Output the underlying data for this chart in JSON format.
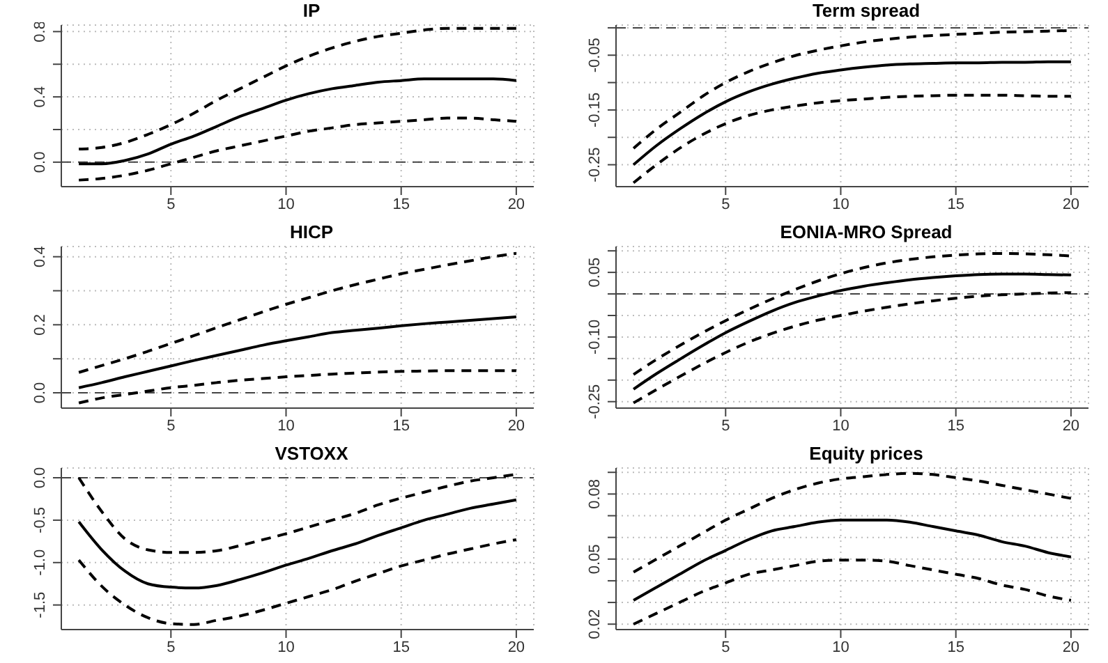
{
  "chart_data": [
    {
      "type": "line",
      "title": "IP",
      "x": [
        1,
        2,
        3,
        4,
        5,
        6,
        7,
        8,
        9,
        10,
        11,
        12,
        13,
        14,
        15,
        16,
        17,
        18,
        19,
        20
      ],
      "xlim": [
        0.24,
        20.76
      ],
      "xticks": [
        5,
        10,
        15,
        20
      ],
      "ylim": [
        -0.15,
        0.84
      ],
      "yticks": [
        {
          "value": 0,
          "label": "0.0"
        },
        {
          "value": 0.2,
          "label": null
        },
        {
          "value": 0.4,
          "label": "0.4"
        },
        {
          "value": 0.6,
          "label": null
        },
        {
          "value": 0.8,
          "label": "0.8"
        }
      ],
      "grid": true,
      "ref_lines": [
        {
          "axis": "y",
          "value": 0,
          "line_style": "dashed"
        }
      ],
      "series": [
        {
          "color": "#000000",
          "line_style": "solid",
          "values": [
            -0.01,
            -0.01,
            0.01,
            0.05,
            0.11,
            0.16,
            0.22,
            0.28,
            0.33,
            0.38,
            0.42,
            0.45,
            0.47,
            0.49,
            0.5,
            0.51,
            0.51,
            0.51,
            0.51,
            0.5
          ]
        },
        {
          "color": "#000000",
          "line_style": "dashed",
          "values": [
            0.08,
            0.09,
            0.12,
            0.17,
            0.23,
            0.3,
            0.38,
            0.45,
            0.52,
            0.59,
            0.65,
            0.7,
            0.74,
            0.77,
            0.79,
            0.81,
            0.82,
            0.82,
            0.82,
            0.82
          ]
        },
        {
          "color": "#000000",
          "line_style": "dashed",
          "values": [
            -0.11,
            -0.1,
            -0.08,
            -0.05,
            -0.01,
            0.03,
            0.07,
            0.1,
            0.13,
            0.16,
            0.19,
            0.21,
            0.23,
            0.24,
            0.25,
            0.26,
            0.27,
            0.27,
            0.26,
            0.25
          ]
        }
      ]
    },
    {
      "type": "line",
      "title": "Term spread",
      "x": [
        1,
        2,
        3,
        4,
        5,
        6,
        7,
        8,
        9,
        10,
        11,
        12,
        13,
        14,
        15,
        16,
        17,
        18,
        19,
        20
      ],
      "xlim": [
        0.24,
        20.76
      ],
      "xticks": [
        5,
        10,
        15,
        20
      ],
      "ylim": [
        -0.29,
        0.005
      ],
      "yticks": [
        {
          "value": -0.25,
          "label": "-0.25"
        },
        {
          "value": -0.2,
          "label": null
        },
        {
          "value": -0.15,
          "label": "-0.15"
        },
        {
          "value": -0.1,
          "label": null
        },
        {
          "value": -0.05,
          "label": "-0.05"
        },
        {
          "value": 0,
          "label": null
        }
      ],
      "grid": true,
      "ref_lines": [
        {
          "axis": "y",
          "value": 0,
          "line_style": "dashed"
        }
      ],
      "series": [
        {
          "color": "#000000",
          "line_style": "solid",
          "values": [
            -0.25,
            -0.215,
            -0.185,
            -0.158,
            -0.135,
            -0.117,
            -0.103,
            -0.092,
            -0.083,
            -0.077,
            -0.072,
            -0.068,
            -0.066,
            -0.065,
            -0.064,
            -0.064,
            -0.063,
            -0.063,
            -0.062,
            -0.062
          ]
        },
        {
          "color": "#000000",
          "line_style": "dashed",
          "values": [
            -0.22,
            -0.185,
            -0.155,
            -0.125,
            -0.1,
            -0.08,
            -0.064,
            -0.051,
            -0.041,
            -0.033,
            -0.026,
            -0.021,
            -0.017,
            -0.014,
            -0.012,
            -0.01,
            -0.008,
            -0.007,
            -0.006,
            -0.005
          ]
        },
        {
          "color": "#000000",
          "line_style": "dashed",
          "values": [
            -0.283,
            -0.25,
            -0.22,
            -0.195,
            -0.175,
            -0.16,
            -0.15,
            -0.143,
            -0.137,
            -0.133,
            -0.13,
            -0.127,
            -0.125,
            -0.124,
            -0.123,
            -0.123,
            -0.123,
            -0.124,
            -0.125,
            -0.125
          ]
        }
      ]
    },
    {
      "type": "line",
      "title": "HICP",
      "x": [
        1,
        2,
        3,
        4,
        5,
        6,
        7,
        8,
        9,
        10,
        11,
        12,
        13,
        14,
        15,
        16,
        17,
        18,
        19,
        20
      ],
      "xlim": [
        0.24,
        20.76
      ],
      "xticks": [
        5,
        10,
        15,
        20
      ],
      "ylim": [
        -0.045,
        0.43
      ],
      "yticks": [
        {
          "value": 0,
          "label": "0.0"
        },
        {
          "value": 0.1,
          "label": null
        },
        {
          "value": 0.2,
          "label": "0.2"
        },
        {
          "value": 0.3,
          "label": null
        },
        {
          "value": 0.4,
          "label": "0.4"
        }
      ],
      "grid": true,
      "ref_lines": [
        {
          "axis": "y",
          "value": 0,
          "line_style": "dashed"
        }
      ],
      "series": [
        {
          "color": "#000000",
          "line_style": "solid",
          "values": [
            0.015,
            0.03,
            0.047,
            0.063,
            0.079,
            0.095,
            0.11,
            0.125,
            0.14,
            0.153,
            0.165,
            0.177,
            0.184,
            0.19,
            0.197,
            0.203,
            0.208,
            0.213,
            0.218,
            0.223
          ]
        },
        {
          "color": "#000000",
          "line_style": "dashed",
          "values": [
            0.06,
            0.08,
            0.1,
            0.122,
            0.145,
            0.168,
            0.192,
            0.215,
            0.238,
            0.26,
            0.28,
            0.3,
            0.318,
            0.334,
            0.35,
            0.363,
            0.376,
            0.388,
            0.4,
            0.41
          ]
        },
        {
          "color": "#000000",
          "line_style": "dashed",
          "values": [
            -0.03,
            -0.015,
            -0.005,
            0.005,
            0.015,
            0.022,
            0.03,
            0.037,
            0.042,
            0.047,
            0.051,
            0.055,
            0.058,
            0.061,
            0.063,
            0.064,
            0.065,
            0.065,
            0.065,
            0.065
          ]
        }
      ]
    },
    {
      "type": "line",
      "title": "EONIA-MRO Spread",
      "x": [
        1,
        2,
        3,
        4,
        5,
        6,
        7,
        8,
        9,
        10,
        11,
        12,
        13,
        14,
        15,
        16,
        17,
        18,
        19,
        20
      ],
      "xlim": [
        0.24,
        20.76
      ],
      "xticks": [
        5,
        10,
        15,
        20
      ],
      "ylim": [
        -0.265,
        0.11
      ],
      "yticks": [
        {
          "value": -0.25,
          "label": "-0.25"
        },
        {
          "value": -0.2,
          "label": null
        },
        {
          "value": -0.15,
          "label": null
        },
        {
          "value": -0.1,
          "label": "-0.10"
        },
        {
          "value": -0.05,
          "label": null
        },
        {
          "value": 0,
          "label": null
        },
        {
          "value": 0.05,
          "label": "0.05"
        },
        {
          "value": 0.1,
          "label": null
        }
      ],
      "grid": true,
      "ref_lines": [
        {
          "axis": "y",
          "value": 0,
          "line_style": "dashed"
        }
      ],
      "series": [
        {
          "color": "#000000",
          "line_style": "solid",
          "values": [
            -0.221,
            -0.185,
            -0.152,
            -0.12,
            -0.09,
            -0.064,
            -0.04,
            -0.02,
            -0.005,
            0.008,
            0.018,
            0.026,
            0.033,
            0.038,
            0.042,
            0.045,
            0.046,
            0.046,
            0.045,
            0.044
          ]
        },
        {
          "color": "#000000",
          "line_style": "dashed",
          "values": [
            -0.187,
            -0.152,
            -0.12,
            -0.09,
            -0.062,
            -0.036,
            -0.012,
            0.01,
            0.03,
            0.047,
            0.061,
            0.072,
            0.08,
            0.086,
            0.09,
            0.093,
            0.094,
            0.093,
            0.091,
            0.088
          ]
        },
        {
          "color": "#000000",
          "line_style": "dashed",
          "values": [
            -0.253,
            -0.222,
            -0.192,
            -0.163,
            -0.136,
            -0.112,
            -0.092,
            -0.075,
            -0.061,
            -0.05,
            -0.04,
            -0.031,
            -0.023,
            -0.016,
            -0.01,
            -0.005,
            -0.002,
            0,
            0.002,
            0.003
          ]
        }
      ]
    },
    {
      "type": "line",
      "title": "VSTOXX",
      "x": [
        1,
        2,
        3,
        4,
        5,
        6,
        7,
        8,
        9,
        10,
        11,
        12,
        13,
        14,
        15,
        16,
        17,
        18,
        19,
        20
      ],
      "xlim": [
        0.24,
        20.76
      ],
      "xticks": [
        5,
        10,
        15,
        20
      ],
      "ylim": [
        -1.79,
        0.115
      ],
      "yticks": [
        {
          "value": -1.5,
          "label": "-1.5"
        },
        {
          "value": -1,
          "label": "-1.0"
        },
        {
          "value": -0.5,
          "label": "-0.5"
        },
        {
          "value": 0,
          "label": "0.0"
        }
      ],
      "grid": true,
      "ref_lines": [
        {
          "axis": "y",
          "value": 0,
          "line_style": "dashed"
        }
      ],
      "series": [
        {
          "color": "#000000",
          "line_style": "solid",
          "values": [
            -0.52,
            -0.85,
            -1.1,
            -1.25,
            -1.29,
            -1.3,
            -1.27,
            -1.2,
            -1.12,
            -1.03,
            -0.95,
            -0.86,
            -0.78,
            -0.68,
            -0.59,
            -0.5,
            -0.43,
            -0.36,
            -0.31,
            -0.26
          ]
        },
        {
          "color": "#000000",
          "line_style": "dashed",
          "values": [
            0,
            -0.4,
            -0.72,
            -0.85,
            -0.88,
            -0.88,
            -0.86,
            -0.8,
            -0.73,
            -0.66,
            -0.58,
            -0.5,
            -0.42,
            -0.32,
            -0.24,
            -0.17,
            -0.1,
            -0.04,
            0,
            0.04
          ]
        },
        {
          "color": "#000000",
          "line_style": "dashed",
          "values": [
            -0.97,
            -1.28,
            -1.5,
            -1.65,
            -1.72,
            -1.73,
            -1.68,
            -1.63,
            -1.56,
            -1.48,
            -1.4,
            -1.32,
            -1.22,
            -1.13,
            -1.04,
            -0.97,
            -0.9,
            -0.84,
            -0.78,
            -0.73
          ]
        }
      ]
    },
    {
      "type": "line",
      "title": "Equity prices",
      "x": [
        1,
        2,
        3,
        4,
        5,
        6,
        7,
        8,
        9,
        10,
        11,
        12,
        13,
        14,
        15,
        16,
        17,
        18,
        19,
        20
      ],
      "xlim": [
        0.24,
        20.76
      ],
      "xticks": [
        5,
        10,
        15,
        20
      ],
      "ylim": [
        0.0175,
        0.092
      ],
      "yticks": [
        0.02,
        {
          "value": 0.03,
          "label": null
        },
        {
          "value": 0.04,
          "label": null
        },
        0.05,
        {
          "value": 0.06,
          "label": null
        },
        {
          "value": 0.07,
          "label": null
        },
        0.08,
        {
          "value": 0.09,
          "label": null
        }
      ],
      "grid": true,
      "series": [
        {
          "color": "#000000",
          "line_style": "solid",
          "values": [
            0.031,
            0.037,
            0.043,
            0.049,
            0.054,
            0.059,
            0.063,
            0.065,
            0.067,
            0.068,
            0.068,
            0.068,
            0.067,
            0.065,
            0.063,
            0.061,
            0.058,
            0.056,
            0.053,
            0.051
          ]
        },
        {
          "color": "#000000",
          "line_style": "dashed",
          "values": [
            0.044,
            0.05,
            0.056,
            0.062,
            0.068,
            0.073,
            0.078,
            0.082,
            0.085,
            0.087,
            0.088,
            0.089,
            0.0895,
            0.089,
            0.0875,
            0.086,
            0.084,
            0.082,
            0.08,
            0.078
          ]
        },
        {
          "color": "#000000",
          "line_style": "dashed",
          "values": [
            0.02,
            0.025,
            0.03,
            0.035,
            0.039,
            0.043,
            0.045,
            0.047,
            0.049,
            0.0495,
            0.0495,
            0.049,
            0.047,
            0.045,
            0.043,
            0.041,
            0.038,
            0.036,
            0.033,
            0.031
          ]
        }
      ]
    }
  ]
}
